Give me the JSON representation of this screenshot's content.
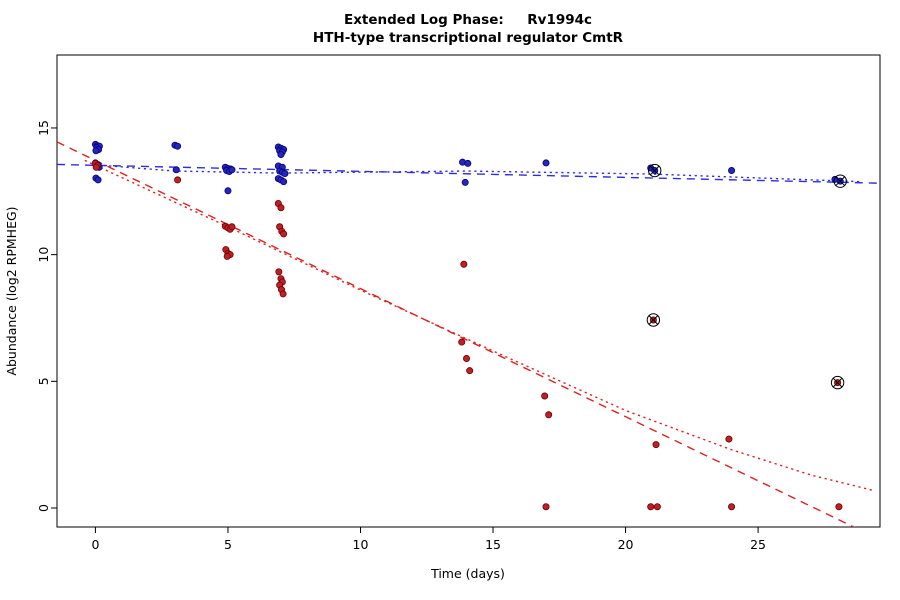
{
  "chart_data": {
    "type": "scatter",
    "title": "Extended Log Phase:     Rv1994c",
    "subtitle": "HTH-type transcriptional regulator CmtR",
    "xlabel": "Time  (days)",
    "ylabel": "Abundance  (log2 RPMHEG)",
    "xlim": [
      -1.45,
      29.6
    ],
    "ylim": [
      -0.75,
      17.88
    ],
    "x_ticks": [
      0,
      5,
      10,
      15,
      20,
      25
    ],
    "y_ticks": [
      0,
      5,
      10,
      15
    ],
    "grid": false,
    "legend": "none",
    "colors": {
      "blue_fill": "#2626bb",
      "blue_stroke": "#000080",
      "red_fill": "#bf2026",
      "red_stroke": "#6b0000",
      "blue_line": "#2e2ee0",
      "red_line": "#e02020",
      "axis": "#000000"
    },
    "series": [
      {
        "name": "blue",
        "color": "#2626bb",
        "stroke": "#000080",
        "points": [
          [
            0,
            14.35
          ],
          [
            0.08,
            14.3
          ],
          [
            0.15,
            14.28
          ],
          [
            0.05,
            14.22
          ],
          [
            0.12,
            14.15
          ],
          [
            0.02,
            14.1
          ],
          [
            0,
            13.62
          ],
          [
            0.1,
            13.55
          ],
          [
            0.04,
            13.5
          ],
          [
            0.14,
            13.45
          ],
          [
            0.02,
            13.02
          ],
          [
            0.1,
            12.95
          ],
          [
            3,
            14.32
          ],
          [
            3.1,
            14.28
          ],
          [
            3.05,
            13.35
          ],
          [
            4.9,
            13.45
          ],
          [
            5,
            13.4
          ],
          [
            5.1,
            13.38
          ],
          [
            4.95,
            13.32
          ],
          [
            5.05,
            13.28
          ],
          [
            5.15,
            13.35
          ],
          [
            5,
            12.52
          ],
          [
            6.9,
            14.25
          ],
          [
            7,
            14.2
          ],
          [
            7.1,
            14.15
          ],
          [
            6.95,
            14.1
          ],
          [
            7.05,
            14.05
          ],
          [
            7,
            13.95
          ],
          [
            6.9,
            13.5
          ],
          [
            7.05,
            13.45
          ],
          [
            6.95,
            13.3
          ],
          [
            7.05,
            13.25
          ],
          [
            7.15,
            13.2
          ],
          [
            6.9,
            13.0
          ],
          [
            7,
            12.95
          ],
          [
            7.1,
            12.88
          ],
          [
            13.85,
            13.65
          ],
          [
            14.05,
            13.6
          ],
          [
            13.95,
            12.85
          ],
          [
            17,
            13.62
          ],
          [
            20.95,
            13.42
          ],
          [
            21.1,
            13.32
          ],
          [
            24,
            13.32
          ],
          [
            27.9,
            12.97
          ],
          [
            28.1,
            12.9
          ]
        ]
      },
      {
        "name": "red",
        "color": "#bf2026",
        "stroke": "#6b0000",
        "points": [
          [
            0,
            13.6
          ],
          [
            0.08,
            13.52
          ],
          [
            0.03,
            13.45
          ],
          [
            3.1,
            12.95
          ],
          [
            4.9,
            11.12
          ],
          [
            5,
            11.06
          ],
          [
            5.08,
            11.0
          ],
          [
            5.15,
            11.1
          ],
          [
            4.92,
            10.2
          ],
          [
            5.0,
            10.05
          ],
          [
            5.08,
            10.0
          ],
          [
            4.97,
            9.93
          ],
          [
            6.9,
            12.02
          ],
          [
            7.0,
            11.85
          ],
          [
            6.95,
            11.1
          ],
          [
            7.03,
            10.92
          ],
          [
            7.1,
            10.82
          ],
          [
            6.92,
            9.32
          ],
          [
            7.0,
            9.05
          ],
          [
            7.05,
            8.92
          ],
          [
            6.95,
            8.8
          ],
          [
            7.02,
            8.62
          ],
          [
            7.08,
            8.45
          ],
          [
            13.9,
            9.62
          ],
          [
            13.82,
            6.55
          ],
          [
            14.0,
            5.9
          ],
          [
            14.12,
            5.42
          ],
          [
            16.95,
            4.42
          ],
          [
            17.1,
            3.68
          ],
          [
            17.0,
            0.05
          ],
          [
            21.05,
            7.42
          ],
          [
            21.15,
            2.5
          ],
          [
            20.95,
            0.05
          ],
          [
            21.2,
            0.05
          ],
          [
            23.9,
            2.72
          ],
          [
            24.0,
            0.05
          ],
          [
            28.0,
            4.95
          ],
          [
            28.05,
            0.05
          ]
        ]
      }
    ],
    "trend_lines": [
      {
        "name": "blue-longdash",
        "color": "#2e2ee0",
        "style": "longdash",
        "points": [
          [
            -1.45,
            13.56
          ],
          [
            29.6,
            12.82
          ]
        ]
      },
      {
        "name": "blue-dotted",
        "color": "#2e2ee0",
        "style": "dotted",
        "points": [
          [
            0.3,
            13.52
          ],
          [
            3,
            13.3
          ],
          [
            7,
            13.22
          ],
          [
            14,
            13.3
          ],
          [
            21,
            13.18
          ],
          [
            28.9,
            12.88
          ]
        ]
      },
      {
        "name": "red-longdash",
        "color": "#e02020",
        "style": "longdash",
        "points": [
          [
            -1.45,
            14.45
          ],
          [
            29.6,
            -1.25
          ]
        ]
      },
      {
        "name": "red-dotted",
        "color": "#e02020",
        "style": "dotted",
        "points": [
          [
            -0.4,
            13.72
          ],
          [
            5,
            11.1
          ],
          [
            10,
            8.6
          ],
          [
            15,
            6.2
          ],
          [
            20,
            3.85
          ],
          [
            24,
            2.3
          ],
          [
            27,
            1.3
          ],
          [
            29.4,
            0.68
          ]
        ]
      }
    ],
    "circled_points": [
      [
        21.1,
        13.32
      ],
      [
        28.1,
        12.9
      ],
      [
        21.05,
        7.42
      ],
      [
        28.0,
        4.95
      ]
    ]
  }
}
